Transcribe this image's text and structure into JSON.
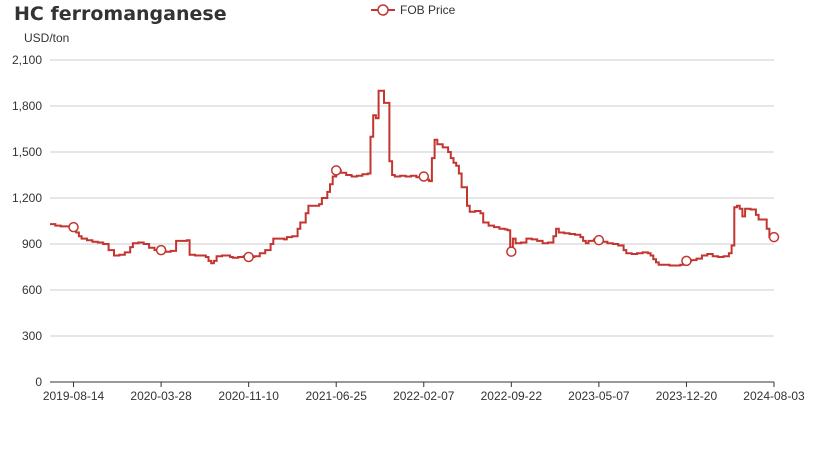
{
  "colors": {
    "series": "#c23531",
    "grid": "#cccccc",
    "axis": "#333333",
    "text": "#333333"
  },
  "chart_data": {
    "type": "line",
    "title": "HC ferromanganese",
    "y_unit": "USD/ton",
    "legend": {
      "position": "top-center",
      "entries": [
        "FOB Price"
      ]
    },
    "grid": true,
    "ylim": [
      0,
      2100
    ],
    "y_ticks": [
      0,
      300,
      600,
      900,
      1200,
      1500,
      1800,
      2100
    ],
    "y_tick_labels": [
      "0",
      "300",
      "600",
      "900",
      "1,200",
      "1,500",
      "1,800",
      "2,100"
    ],
    "x_range": [
      "2019-06-14",
      "2024-08-03"
    ],
    "x_ticks": [
      "2019-08-14",
      "2020-03-28",
      "2020-11-10",
      "2021-06-25",
      "2022-02-07",
      "2022-09-22",
      "2023-05-07",
      "2023-12-20",
      "2024-08-03"
    ],
    "step": true,
    "series": [
      {
        "name": "FOB Price",
        "markers": [
          "2019-08-14",
          "2020-03-28",
          "2020-11-10",
          "2021-06-25",
          "2022-02-07",
          "2022-09-22",
          "2023-05-07",
          "2023-12-20",
          "2024-08-03"
        ],
        "points": [
          [
            "2019-06-14",
            1030
          ],
          [
            "2019-06-28",
            1020
          ],
          [
            "2019-07-12",
            1015
          ],
          [
            "2019-08-07",
            1010
          ],
          [
            "2019-08-14",
            1010
          ],
          [
            "2019-08-21",
            975
          ],
          [
            "2019-08-28",
            950
          ],
          [
            "2019-09-04",
            935
          ],
          [
            "2019-09-18",
            925
          ],
          [
            "2019-10-02",
            915
          ],
          [
            "2019-10-16",
            910
          ],
          [
            "2019-10-30",
            900
          ],
          [
            "2019-11-13",
            860
          ],
          [
            "2019-11-27",
            825
          ],
          [
            "2019-12-11",
            830
          ],
          [
            "2019-12-25",
            845
          ],
          [
            "2020-01-08",
            880
          ],
          [
            "2020-01-15",
            905
          ],
          [
            "2020-01-29",
            910
          ],
          [
            "2020-02-12",
            900
          ],
          [
            "2020-02-26",
            875
          ],
          [
            "2020-03-11",
            860
          ],
          [
            "2020-03-28",
            860
          ],
          [
            "2020-04-08",
            850
          ],
          [
            "2020-04-22",
            855
          ],
          [
            "2020-05-06",
            920
          ],
          [
            "2020-06-03",
            925
          ],
          [
            "2020-06-10",
            830
          ],
          [
            "2020-06-24",
            825
          ],
          [
            "2020-07-22",
            815
          ],
          [
            "2020-07-29",
            790
          ],
          [
            "2020-08-05",
            775
          ],
          [
            "2020-08-12",
            790
          ],
          [
            "2020-08-19",
            820
          ],
          [
            "2020-09-02",
            825
          ],
          [
            "2020-09-23",
            815
          ],
          [
            "2020-09-30",
            810
          ],
          [
            "2020-10-14",
            815
          ],
          [
            "2020-10-28",
            820
          ],
          [
            "2020-11-10",
            815
          ],
          [
            "2020-11-25",
            820
          ],
          [
            "2020-12-09",
            840
          ],
          [
            "2020-12-23",
            860
          ],
          [
            "2021-01-06",
            900
          ],
          [
            "2021-01-13",
            935
          ],
          [
            "2021-02-10",
            930
          ],
          [
            "2021-02-17",
            945
          ],
          [
            "2021-03-03",
            950
          ],
          [
            "2021-03-17",
            1000
          ],
          [
            "2021-03-24",
            1040
          ],
          [
            "2021-04-07",
            1100
          ],
          [
            "2021-04-14",
            1150
          ],
          [
            "2021-05-12",
            1160
          ],
          [
            "2021-05-19",
            1200
          ],
          [
            "2021-06-02",
            1240
          ],
          [
            "2021-06-09",
            1290
          ],
          [
            "2021-06-16",
            1340
          ],
          [
            "2021-06-25",
            1380
          ],
          [
            "2021-07-07",
            1365
          ],
          [
            "2021-07-21",
            1350
          ],
          [
            "2021-08-04",
            1340
          ],
          [
            "2021-08-18",
            1345
          ],
          [
            "2021-09-01",
            1355
          ],
          [
            "2021-09-15",
            1360
          ],
          [
            "2021-09-22",
            1600
          ],
          [
            "2021-09-29",
            1740
          ],
          [
            "2021-10-06",
            1720
          ],
          [
            "2021-10-13",
            1900
          ],
          [
            "2021-10-27",
            1820
          ],
          [
            "2021-11-10",
            1440
          ],
          [
            "2021-11-17",
            1350
          ],
          [
            "2021-11-24",
            1340
          ],
          [
            "2021-12-08",
            1345
          ],
          [
            "2021-12-22",
            1340
          ],
          [
            "2022-01-05",
            1345
          ],
          [
            "2022-01-19",
            1335
          ],
          [
            "2022-02-07",
            1340
          ],
          [
            "2022-02-14",
            1320
          ],
          [
            "2022-02-21",
            1310
          ],
          [
            "2022-02-28",
            1460
          ],
          [
            "2022-03-07",
            1580
          ],
          [
            "2022-03-14",
            1550
          ],
          [
            "2022-03-28",
            1530
          ],
          [
            "2022-04-11",
            1500
          ],
          [
            "2022-04-18",
            1460
          ],
          [
            "2022-04-25",
            1430
          ],
          [
            "2022-05-02",
            1410
          ],
          [
            "2022-05-09",
            1360
          ],
          [
            "2022-05-16",
            1270
          ],
          [
            "2022-05-30",
            1150
          ],
          [
            "2022-06-06",
            1110
          ],
          [
            "2022-06-20",
            1115
          ],
          [
            "2022-07-04",
            1100
          ],
          [
            "2022-07-11",
            1040
          ],
          [
            "2022-07-25",
            1020
          ],
          [
            "2022-08-08",
            1010
          ],
          [
            "2022-08-22",
            1000
          ],
          [
            "2022-09-05",
            995
          ],
          [
            "2022-09-12",
            990
          ],
          [
            "2022-09-19",
            870
          ],
          [
            "2022-09-22",
            850
          ],
          [
            "2022-09-26",
            935
          ],
          [
            "2022-10-03",
            905
          ],
          [
            "2022-10-17",
            910
          ],
          [
            "2022-10-31",
            935
          ],
          [
            "2022-11-14",
            930
          ],
          [
            "2022-11-28",
            920
          ],
          [
            "2022-12-12",
            905
          ],
          [
            "2022-12-26",
            910
          ],
          [
            "2023-01-09",
            950
          ],
          [
            "2023-01-16",
            1000
          ],
          [
            "2023-01-23",
            975
          ],
          [
            "2023-02-06",
            970
          ],
          [
            "2023-02-20",
            965
          ],
          [
            "2023-03-06",
            960
          ],
          [
            "2023-03-20",
            945
          ],
          [
            "2023-03-27",
            920
          ],
          [
            "2023-04-03",
            905
          ],
          [
            "2023-04-10",
            920
          ],
          [
            "2023-04-24",
            930
          ],
          [
            "2023-05-07",
            925
          ],
          [
            "2023-05-15",
            915
          ],
          [
            "2023-05-29",
            905
          ],
          [
            "2023-06-12",
            900
          ],
          [
            "2023-06-26",
            890
          ],
          [
            "2023-07-10",
            860
          ],
          [
            "2023-07-17",
            840
          ],
          [
            "2023-07-31",
            835
          ],
          [
            "2023-08-14",
            840
          ],
          [
            "2023-08-28",
            845
          ],
          [
            "2023-09-11",
            840
          ],
          [
            "2023-09-18",
            825
          ],
          [
            "2023-09-25",
            800
          ],
          [
            "2023-10-02",
            780
          ],
          [
            "2023-10-09",
            765
          ],
          [
            "2023-11-06",
            760
          ],
          [
            "2023-12-04",
            765
          ],
          [
            "2023-12-11",
            790
          ],
          [
            "2023-12-20",
            790
          ],
          [
            "2024-01-01",
            795
          ],
          [
            "2024-01-15",
            805
          ],
          [
            "2024-01-29",
            825
          ],
          [
            "2024-02-12",
            835
          ],
          [
            "2024-02-26",
            820
          ],
          [
            "2024-03-11",
            815
          ],
          [
            "2024-03-25",
            820
          ],
          [
            "2024-04-08",
            840
          ],
          [
            "2024-04-15",
            890
          ],
          [
            "2024-04-22",
            1140
          ],
          [
            "2024-04-29",
            1150
          ],
          [
            "2024-05-06",
            1130
          ],
          [
            "2024-05-13",
            1080
          ],
          [
            "2024-05-20",
            1130
          ],
          [
            "2024-06-03",
            1125
          ],
          [
            "2024-06-17",
            1090
          ],
          [
            "2024-06-24",
            1060
          ],
          [
            "2024-07-15",
            1000
          ],
          [
            "2024-07-22",
            945
          ],
          [
            "2024-08-03",
            945
          ]
        ]
      }
    ]
  }
}
